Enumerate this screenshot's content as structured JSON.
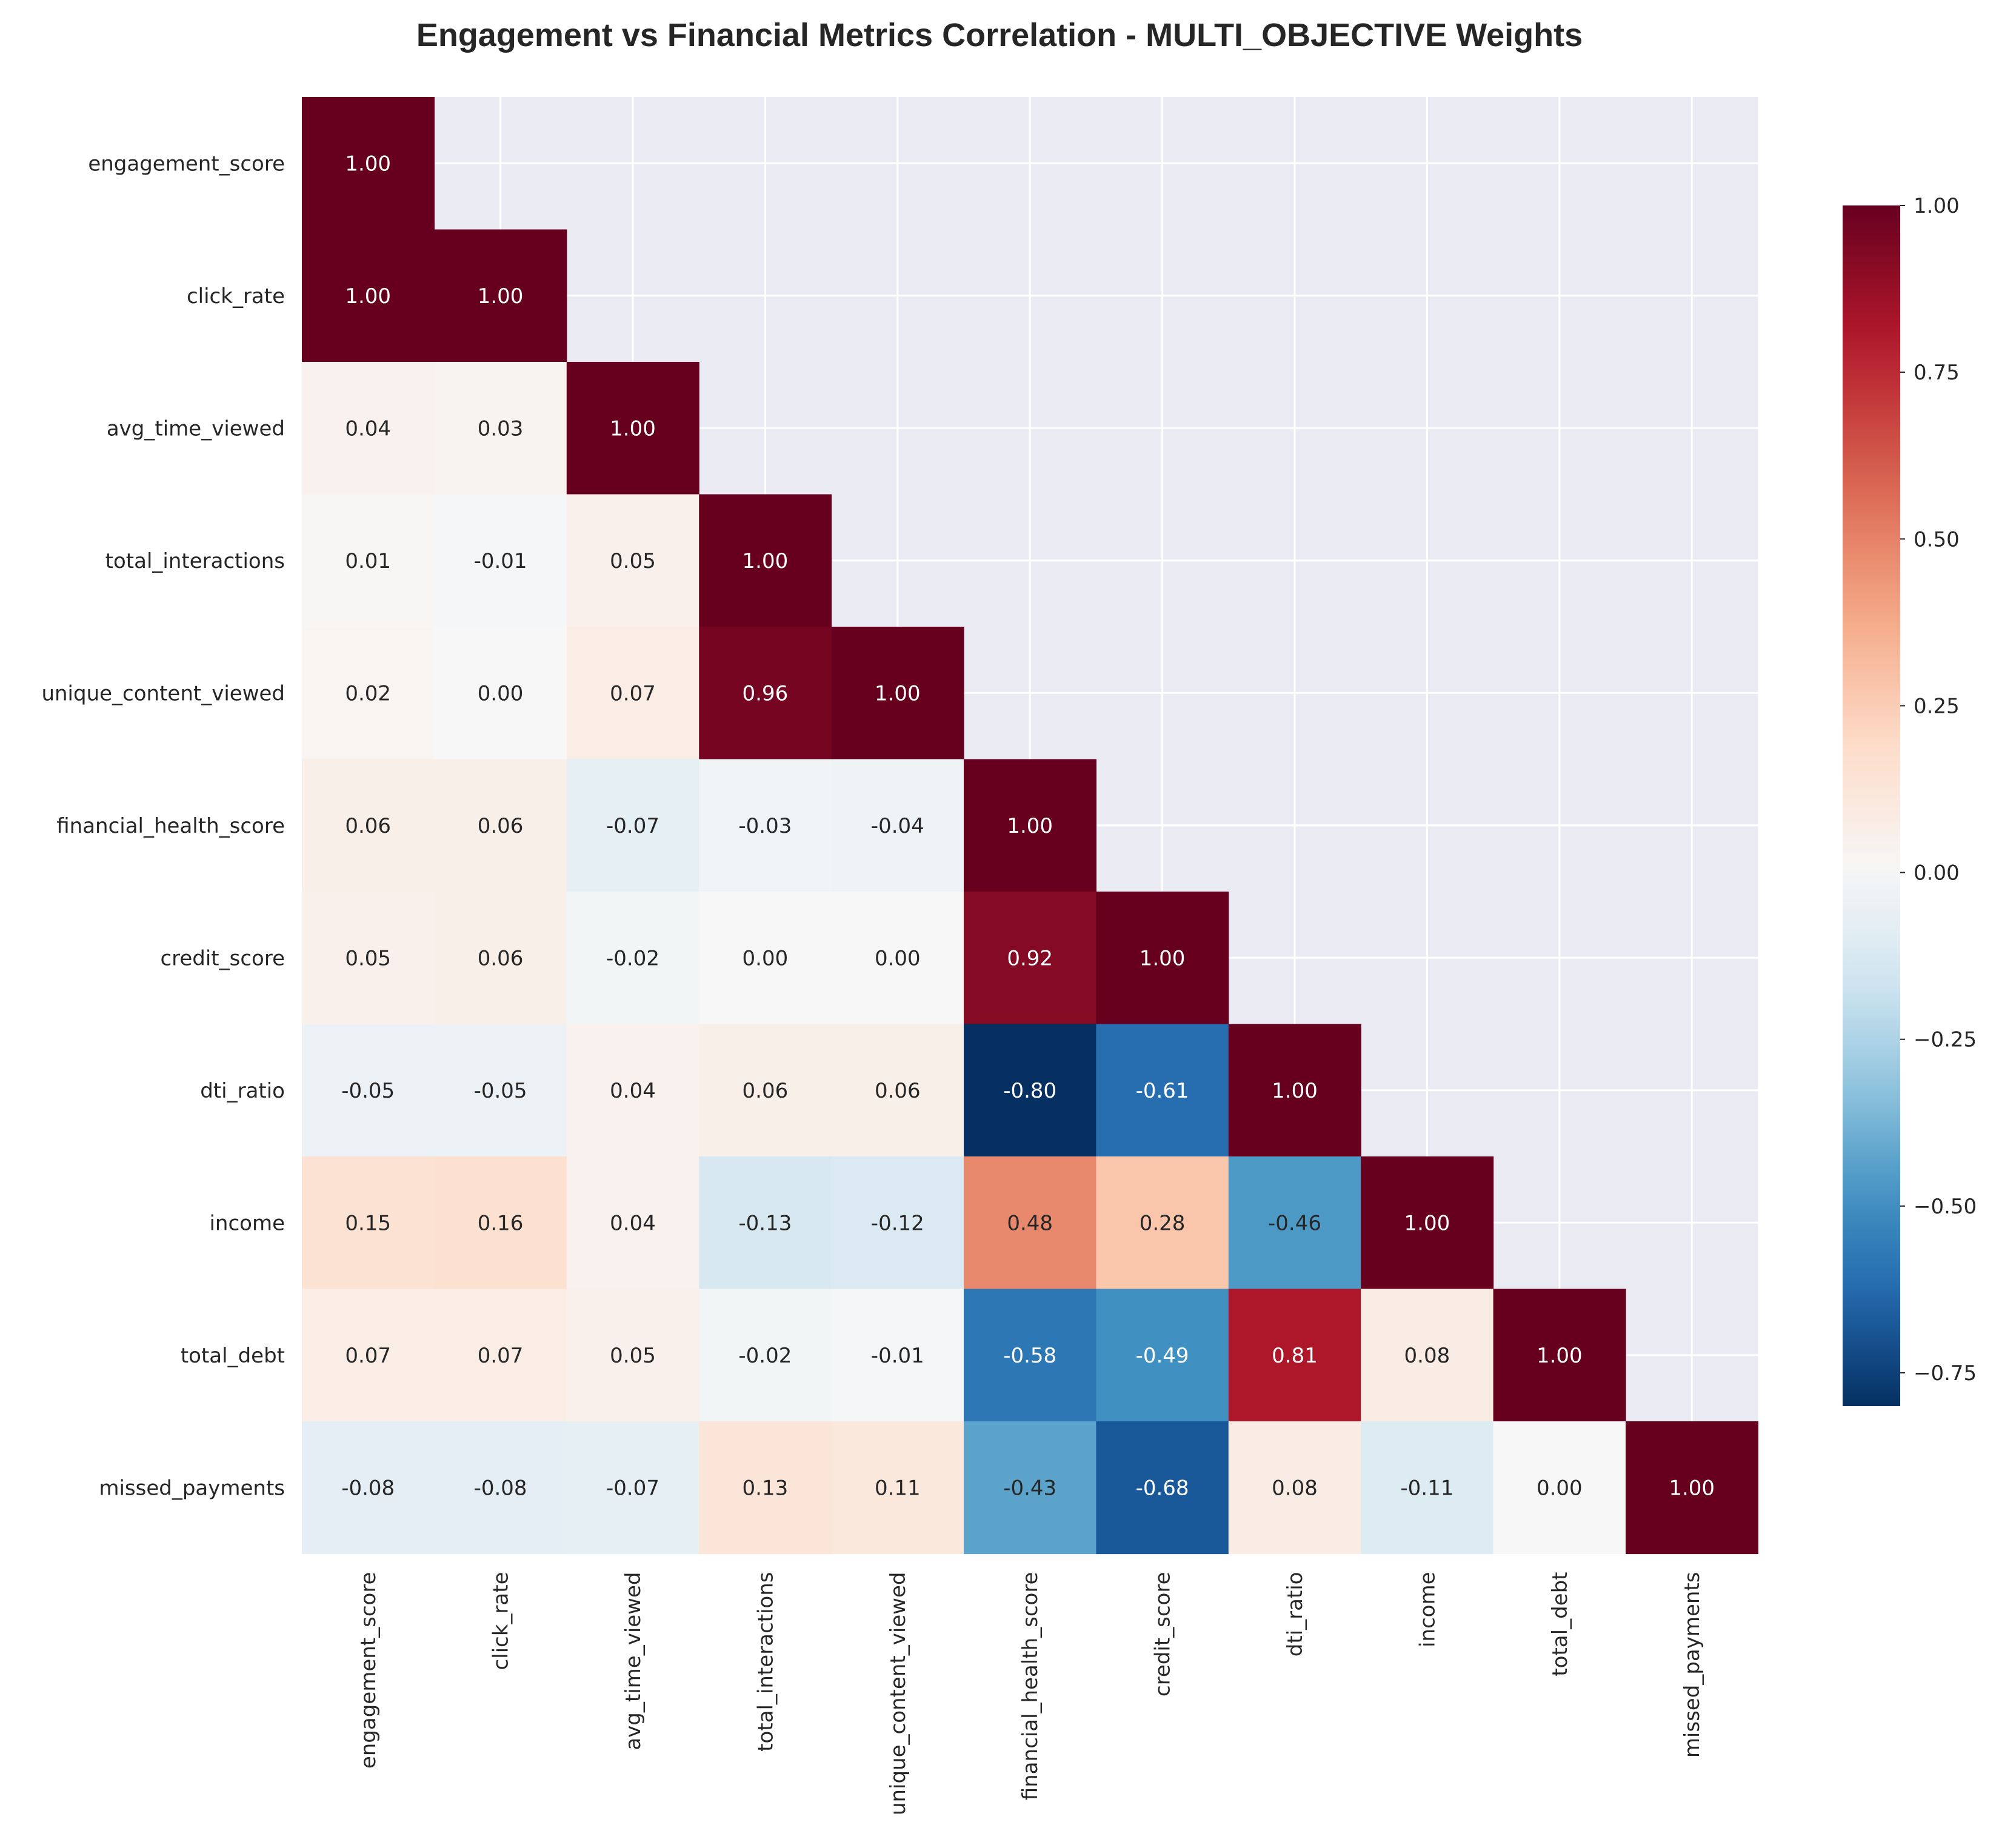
{
  "chart_data": {
    "type": "heatmap",
    "title": "Engagement vs Financial Metrics Correlation - MULTI_OBJECTIVE Weights",
    "variables": [
      "engagement_score",
      "click_rate",
      "avg_time_viewed",
      "total_interactions",
      "unique_content_viewed",
      "financial_health_score",
      "credit_score",
      "dti_ratio",
      "income",
      "total_debt",
      "missed_payments"
    ],
    "matrix_lower_triangle": [
      [
        1.0
      ],
      [
        1.0,
        1.0
      ],
      [
        0.04,
        0.03,
        1.0
      ],
      [
        0.01,
        -0.01,
        0.05,
        1.0
      ],
      [
        0.02,
        0.0,
        0.07,
        0.96,
        1.0
      ],
      [
        0.06,
        0.06,
        -0.07,
        -0.03,
        -0.04,
        1.0
      ],
      [
        0.05,
        0.06,
        -0.02,
        -0.0,
        -0.0,
        0.92,
        1.0
      ],
      [
        -0.05,
        -0.05,
        0.04,
        0.06,
        0.06,
        -0.8,
        -0.61,
        1.0
      ],
      [
        0.15,
        0.16,
        0.04,
        -0.13,
        -0.12,
        0.48,
        0.28,
        -0.46,
        1.0
      ],
      [
        0.07,
        0.07,
        0.05,
        -0.02,
        -0.01,
        -0.58,
        -0.49,
        0.81,
        0.08,
        1.0
      ],
      [
        -0.08,
        -0.08,
        -0.07,
        0.13,
        0.11,
        -0.43,
        -0.68,
        0.08,
        -0.11,
        0.0,
        1.0
      ]
    ],
    "mask": "upper triangle hidden",
    "value_format": "2 decimals",
    "colormap": "RdBu_r",
    "color_range": [
      -0.8,
      1.0
    ],
    "colorbar": {
      "position": "right",
      "ticks": [
        "1.00",
        "0.75",
        "0.50",
        "0.25",
        "0.00",
        "−0.25",
        "−0.50",
        "−0.75"
      ],
      "tick_values": [
        1.0,
        0.75,
        0.5,
        0.25,
        0.0,
        -0.25,
        -0.5,
        -0.75
      ]
    },
    "grid": true,
    "background_color": "#eaeaf2"
  }
}
